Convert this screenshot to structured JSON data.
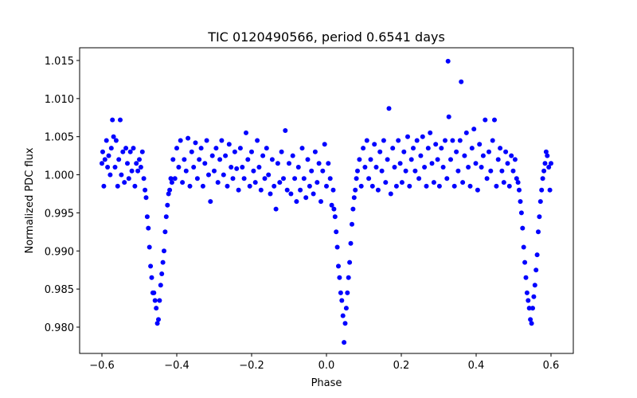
{
  "chart_data": {
    "type": "scatter",
    "title": "TIC 0120490566, period 0.6541 days",
    "xlabel": "Phase",
    "ylabel": "Normalized PDC flux",
    "xlim": [
      -0.6596,
      0.6596
    ],
    "ylim": [
      0.97655,
      1.01667
    ],
    "xticks": [
      -0.6,
      -0.4,
      -0.2,
      0.0,
      0.2,
      0.4,
      0.6
    ],
    "xtick_labels": [
      "−0.6",
      "−0.4",
      "−0.2",
      "0.0",
      "0.2",
      "0.4",
      "0.6"
    ],
    "yticks": [
      0.98,
      0.985,
      0.99,
      0.995,
      1.0,
      1.005,
      1.01,
      1.015
    ],
    "ytick_labels": [
      "0.980",
      "0.985",
      "0.990",
      "0.995",
      "1.000",
      "1.005",
      "1.010",
      "1.015"
    ],
    "grid": false,
    "marker_color": "#0000ff",
    "series": [
      {
        "name": "PDC flux",
        "points": [
          [
            -0.6,
            1.0015
          ],
          [
            -0.598,
            1.003
          ],
          [
            -0.595,
            0.9985
          ],
          [
            -0.592,
            1.002
          ],
          [
            -0.588,
            1.0045
          ],
          [
            -0.585,
            1.001
          ],
          [
            -0.582,
            1.0025
          ],
          [
            -0.578,
            1.0
          ],
          [
            -0.575,
            1.0035
          ],
          [
            -0.572,
            1.0072
          ],
          [
            -0.569,
            1.005
          ],
          [
            -0.565,
            1.001
          ],
          [
            -0.562,
            1.0045
          ],
          [
            -0.558,
            0.9985
          ],
          [
            -0.555,
            1.002
          ],
          [
            -0.551,
            1.0072
          ],
          [
            -0.548,
            1.0
          ],
          [
            -0.544,
            1.003
          ],
          [
            -0.54,
            0.999
          ],
          [
            -0.536,
            1.0035
          ],
          [
            -0.532,
            1.0015
          ],
          [
            -0.528,
            0.9995
          ],
          [
            -0.524,
            1.003
          ],
          [
            -0.52,
            1.0005
          ],
          [
            -0.516,
            1.0035
          ],
          [
            -0.512,
            0.9985
          ],
          [
            -0.508,
            1.0015
          ],
          [
            -0.504,
            1.0005
          ],
          [
            -0.5,
            1.002
          ],
          [
            -0.496,
            1.001
          ],
          [
            -0.492,
            1.003
          ],
          [
            -0.488,
            0.9995
          ],
          [
            -0.485,
            0.998
          ],
          [
            -0.482,
            0.997
          ],
          [
            -0.479,
            0.9945
          ],
          [
            -0.476,
            0.993
          ],
          [
            -0.473,
            0.9905
          ],
          [
            -0.47,
            0.988
          ],
          [
            -0.467,
            0.9865
          ],
          [
            -0.464,
            0.9845
          ],
          [
            -0.461,
            0.9845
          ],
          [
            -0.458,
            0.9835
          ],
          [
            -0.455,
            0.9825
          ],
          [
            -0.452,
            0.9805
          ],
          [
            -0.449,
            0.981
          ],
          [
            -0.446,
            0.9835
          ],
          [
            -0.443,
            0.9855
          ],
          [
            -0.44,
            0.987
          ],
          [
            -0.437,
            0.9885
          ],
          [
            -0.434,
            0.99
          ],
          [
            -0.431,
            0.9925
          ],
          [
            -0.428,
            0.9945
          ],
          [
            -0.425,
            0.996
          ],
          [
            -0.422,
            0.9975
          ],
          [
            -0.419,
            0.998
          ],
          [
            -0.416,
            0.9995
          ],
          [
            -0.413,
            0.999
          ],
          [
            -0.41,
            1.002
          ],
          [
            -0.405,
            0.9995
          ],
          [
            -0.4,
            1.0035
          ],
          [
            -0.395,
            1.001
          ],
          [
            -0.39,
            1.0045
          ],
          [
            -0.385,
            0.999
          ],
          [
            -0.38,
            1.002
          ],
          [
            -0.375,
            1.0005
          ],
          [
            -0.37,
            1.0048
          ],
          [
            -0.365,
            0.9985
          ],
          [
            -0.36,
            1.003
          ],
          [
            -0.355,
            1.001
          ],
          [
            -0.35,
            1.0042
          ],
          [
            -0.345,
            0.9995
          ],
          [
            -0.34,
            1.002
          ],
          [
            -0.335,
            1.0035
          ],
          [
            -0.33,
            0.9985
          ],
          [
            -0.325,
            1.0015
          ],
          [
            -0.32,
            1.0045
          ],
          [
            -0.315,
            1.0
          ],
          [
            -0.31,
            0.9965
          ],
          [
            -0.305,
            1.0025
          ],
          [
            -0.3,
            1.0005
          ],
          [
            -0.295,
            1.0035
          ],
          [
            -0.29,
            0.999
          ],
          [
            -0.285,
            1.002
          ],
          [
            -0.28,
            1.0045
          ],
          [
            -0.275,
            1.0
          ],
          [
            -0.27,
            1.0025
          ],
          [
            -0.265,
            0.9985
          ],
          [
            -0.26,
            1.004
          ],
          [
            -0.255,
            1.001
          ],
          [
            -0.25,
            0.9995
          ],
          [
            -0.245,
            1.003
          ],
          [
            -0.24,
            1.0008
          ],
          [
            -0.235,
            0.998
          ],
          [
            -0.23,
            1.0035
          ],
          [
            -0.225,
            1.001
          ],
          [
            -0.22,
            0.9995
          ],
          [
            -0.215,
            1.0055
          ],
          [
            -0.21,
            1.002
          ],
          [
            -0.205,
            0.9985
          ],
          [
            -0.2,
            1.003
          ],
          [
            -0.195,
            1.0005
          ],
          [
            -0.19,
            0.999
          ],
          [
            -0.185,
            1.0045
          ],
          [
            -0.18,
            1.001
          ],
          [
            -0.175,
            0.998
          ],
          [
            -0.17,
            1.0025
          ],
          [
            -0.165,
            0.9995
          ],
          [
            -0.16,
            1.0035
          ],
          [
            -0.155,
            1.0
          ],
          [
            -0.15,
            0.9975
          ],
          [
            -0.145,
            1.002
          ],
          [
            -0.14,
            0.9985
          ],
          [
            -0.135,
            0.9955
          ],
          [
            -0.13,
            1.0015
          ],
          [
            -0.125,
            0.999
          ],
          [
            -0.12,
            1.003
          ],
          [
            -0.115,
            0.9995
          ],
          [
            -0.11,
            1.0058
          ],
          [
            -0.105,
            0.998
          ],
          [
            -0.1,
            1.0015
          ],
          [
            -0.095,
            0.9975
          ],
          [
            -0.09,
            1.0025
          ],
          [
            -0.085,
            0.9995
          ],
          [
            -0.08,
            0.9965
          ],
          [
            -0.075,
            1.001
          ],
          [
            -0.07,
            0.998
          ],
          [
            -0.065,
            1.0035
          ],
          [
            -0.06,
            0.9995
          ],
          [
            -0.055,
            0.997
          ],
          [
            -0.05,
            1.002
          ],
          [
            -0.045,
            0.9985
          ],
          [
            -0.04,
            1.0005
          ],
          [
            -0.035,
            0.9975
          ],
          [
            -0.03,
            1.003
          ],
          [
            -0.025,
            0.999
          ],
          [
            -0.02,
            1.0015
          ],
          [
            -0.015,
            0.9965
          ],
          [
            -0.01,
            1.0005
          ],
          [
            -0.005,
            1.004
          ],
          [
            0.0,
            0.9985
          ],
          [
            0.005,
            1.0015
          ],
          [
            0.01,
            0.9995
          ],
          [
            0.014,
            0.996
          ],
          [
            0.018,
            0.998
          ],
          [
            0.02,
            0.9955
          ],
          [
            0.023,
            0.9945
          ],
          [
            0.026,
            0.9925
          ],
          [
            0.029,
            0.9905
          ],
          [
            0.032,
            0.988
          ],
          [
            0.035,
            0.9865
          ],
          [
            0.038,
            0.9845
          ],
          [
            0.041,
            0.9835
          ],
          [
            0.044,
            0.9815
          ],
          [
            0.047,
            0.978
          ],
          [
            0.05,
            0.9805
          ],
          [
            0.053,
            0.9825
          ],
          [
            0.056,
            0.9845
          ],
          [
            0.059,
            0.9865
          ],
          [
            0.062,
            0.9885
          ],
          [
            0.065,
            0.991
          ],
          [
            0.068,
            0.9935
          ],
          [
            0.071,
            0.9955
          ],
          [
            0.074,
            0.997
          ],
          [
            0.077,
            0.998
          ],
          [
            0.08,
            0.9995
          ],
          [
            0.083,
            1.0005
          ],
          [
            0.088,
            1.002
          ],
          [
            0.093,
            0.9985
          ],
          [
            0.098,
            1.0035
          ],
          [
            0.103,
            1.001
          ],
          [
            0.108,
            1.0045
          ],
          [
            0.113,
            0.9995
          ],
          [
            0.118,
            1.002
          ],
          [
            0.123,
            0.9985
          ],
          [
            0.128,
            1.004
          ],
          [
            0.133,
            1.001
          ],
          [
            0.138,
            0.998
          ],
          [
            0.143,
            1.003
          ],
          [
            0.148,
            1.0005
          ],
          [
            0.153,
            1.0045
          ],
          [
            0.158,
            0.999
          ],
          [
            0.163,
            1.002
          ],
          [
            0.167,
            1.0087
          ],
          [
            0.172,
            0.9975
          ],
          [
            0.177,
            1.0035
          ],
          [
            0.182,
            1.001
          ],
          [
            0.187,
            0.9985
          ],
          [
            0.192,
            1.0045
          ],
          [
            0.197,
            1.0015
          ],
          [
            0.202,
            0.999
          ],
          [
            0.207,
            1.003
          ],
          [
            0.212,
            1.0005
          ],
          [
            0.217,
            1.005
          ],
          [
            0.222,
            0.9985
          ],
          [
            0.227,
            1.002
          ],
          [
            0.232,
            1.0035
          ],
          [
            0.237,
            1.0005
          ],
          [
            0.242,
            1.0045
          ],
          [
            0.247,
            0.9995
          ],
          [
            0.252,
            1.0025
          ],
          [
            0.257,
            1.005
          ],
          [
            0.262,
            1.001
          ],
          [
            0.267,
            0.9985
          ],
          [
            0.272,
            1.0035
          ],
          [
            0.277,
            1.0055
          ],
          [
            0.282,
            1.0015
          ],
          [
            0.287,
            0.999
          ],
          [
            0.292,
            1.004
          ],
          [
            0.297,
            1.002
          ],
          [
            0.302,
            0.9985
          ],
          [
            0.307,
            1.0035
          ],
          [
            0.312,
            1.001
          ],
          [
            0.317,
            1.0045
          ],
          [
            0.322,
            0.9995
          ],
          [
            0.325,
            1.0149
          ],
          [
            0.327,
            1.0076
          ],
          [
            0.332,
            1.002
          ],
          [
            0.337,
            1.0045
          ],
          [
            0.342,
            0.9985
          ],
          [
            0.347,
            1.003
          ],
          [
            0.352,
            1.0005
          ],
          [
            0.357,
            1.0045
          ],
          [
            0.36,
            1.0122
          ],
          [
            0.364,
            0.999
          ],
          [
            0.369,
            1.0025
          ],
          [
            0.374,
            1.0055
          ],
          [
            0.379,
            1.001
          ],
          [
            0.384,
            0.9985
          ],
          [
            0.389,
            1.0035
          ],
          [
            0.394,
            1.006
          ],
          [
            0.399,
            1.0015
          ],
          [
            0.404,
            0.998
          ],
          [
            0.409,
            1.004
          ],
          [
            0.414,
            1.001
          ],
          [
            0.419,
            1.0025
          ],
          [
            0.424,
            1.0072
          ],
          [
            0.429,
            0.9995
          ],
          [
            0.434,
            1.003
          ],
          [
            0.439,
            1.0005
          ],
          [
            0.444,
            1.0045
          ],
          [
            0.449,
            1.0072
          ],
          [
            0.454,
            0.9985
          ],
          [
            0.459,
            1.002
          ],
          [
            0.464,
            1.0035
          ],
          [
            0.469,
            1.0005
          ],
          [
            0.474,
            0.999
          ],
          [
            0.479,
            1.003
          ],
          [
            0.484,
            1.0015
          ],
          [
            0.489,
            0.9985
          ],
          [
            0.494,
            1.0025
          ],
          [
            0.499,
            1.0005
          ],
          [
            0.504,
            1.002
          ],
          [
            0.508,
            0.9995
          ],
          [
            0.512,
            0.999
          ],
          [
            0.515,
            0.998
          ],
          [
            0.518,
            0.9965
          ],
          [
            0.521,
            0.995
          ],
          [
            0.524,
            0.993
          ],
          [
            0.527,
            0.9905
          ],
          [
            0.53,
            0.9885
          ],
          [
            0.533,
            0.9865
          ],
          [
            0.536,
            0.9845
          ],
          [
            0.539,
            0.9835
          ],
          [
            0.542,
            0.9825
          ],
          [
            0.545,
            0.981
          ],
          [
            0.548,
            0.9805
          ],
          [
            0.551,
            0.9825
          ],
          [
            0.554,
            0.984
          ],
          [
            0.557,
            0.9855
          ],
          [
            0.56,
            0.9875
          ],
          [
            0.563,
            0.9895
          ],
          [
            0.566,
            0.9925
          ],
          [
            0.569,
            0.9945
          ],
          [
            0.572,
            0.9965
          ],
          [
            0.575,
            0.998
          ],
          [
            0.578,
            0.9995
          ],
          [
            0.581,
            1.0005
          ],
          [
            0.584,
            1.0015
          ],
          [
            0.587,
            1.003
          ],
          [
            0.59,
            1.0025
          ],
          [
            0.594,
            1.001
          ],
          [
            0.597,
            0.998
          ],
          [
            0.6,
            1.0015
          ]
        ]
      }
    ]
  }
}
